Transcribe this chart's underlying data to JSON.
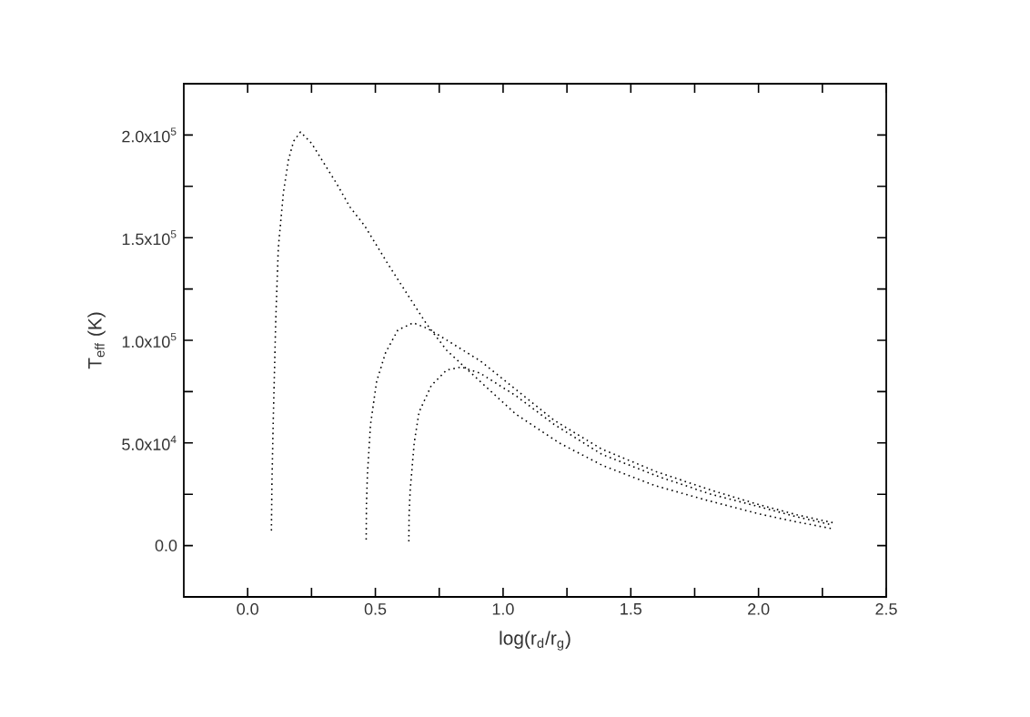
{
  "chart_data": {
    "type": "line",
    "xlabel": "log(r$_{d}$/r$_{g}$)",
    "ylabel": "T$_{eff}$ (K)",
    "line_style": "dotted",
    "xlim": [
      -0.25,
      2.5
    ],
    "ylim": [
      -25000,
      225000
    ],
    "xticks": [
      {
        "value": 0,
        "label": "0.0"
      },
      {
        "value": 0.25,
        "label": null
      },
      {
        "value": 0.5,
        "label": "0.5"
      },
      {
        "value": 0.75,
        "label": null
      },
      {
        "value": 1,
        "label": "1.0"
      },
      {
        "value": 1.25,
        "label": null
      },
      {
        "value": 1.5,
        "label": "1.5"
      },
      {
        "value": 1.75,
        "label": null
      },
      {
        "value": 2,
        "label": "2.0"
      },
      {
        "value": 2.25,
        "label": null
      },
      {
        "value": 2.5,
        "label": "2.5"
      }
    ],
    "yticks": [
      {
        "value": 0,
        "label": "0.0"
      },
      {
        "value": 25000,
        "label": null
      },
      {
        "value": 50000,
        "label": "5.0x10$^{4}$"
      },
      {
        "value": 75000,
        "label": null
      },
      {
        "value": 100000,
        "label": "1.0x10$^{5}$"
      },
      {
        "value": 125000,
        "label": null
      },
      {
        "value": 150000,
        "label": "1.5x10$^{5}$"
      },
      {
        "value": 175000,
        "label": null
      },
      {
        "value": 200000,
        "label": "2.0x10$^{5}$"
      }
    ],
    "series": [
      {
        "color": "#000000",
        "x": [
          0.093,
          0.095,
          0.1,
          0.11,
          0.12,
          0.14,
          0.16,
          0.18,
          0.207,
          0.25,
          0.3,
          0.35,
          0.4,
          0.457,
          0.55,
          0.648,
          0.7,
          0.78,
          0.91,
          1.05,
          1.22,
          1.39,
          1.6,
          1.8,
          2.0,
          2.15,
          2.29
        ],
        "values": [
          7300,
          30000,
          60000,
          110000,
          145000,
          172000,
          188000,
          197000,
          201500,
          196000,
          186000,
          176000,
          165000,
          156000,
          137000,
          118000,
          108000,
          95000,
          80000,
          64000,
          50000,
          39000,
          29000,
          22000,
          15500,
          11500,
          8200
        ]
      },
      {
        "color": "#000000",
        "x": [
          0.464,
          0.465,
          0.469,
          0.481,
          0.505,
          0.54,
          0.588,
          0.648,
          0.7,
          0.755,
          0.91,
          1.05,
          1.2,
          1.386,
          1.6,
          1.814,
          2.0,
          2.15,
          2.3
        ],
        "values": [
          2900,
          20000,
          35000,
          59000,
          80000,
          94000,
          105000,
          108500,
          106000,
          102000,
          90000,
          76000,
          61000,
          47000,
          36000,
          27000,
          20000,
          15000,
          10900
        ]
      },
      {
        "color": "#000000",
        "x": [
          0.631,
          0.632,
          0.636,
          0.652,
          0.671,
          0.719,
          0.779,
          0.838,
          0.91,
          1.05,
          1.2,
          1.386,
          1.6,
          1.814,
          2.0,
          2.15,
          2.29
        ],
        "values": [
          2000,
          15000,
          26500,
          50000,
          65000,
          78000,
          85500,
          87000,
          84000,
          73000,
          59000,
          44500,
          34000,
          25000,
          19000,
          14000,
          10000
        ]
      }
    ]
  }
}
